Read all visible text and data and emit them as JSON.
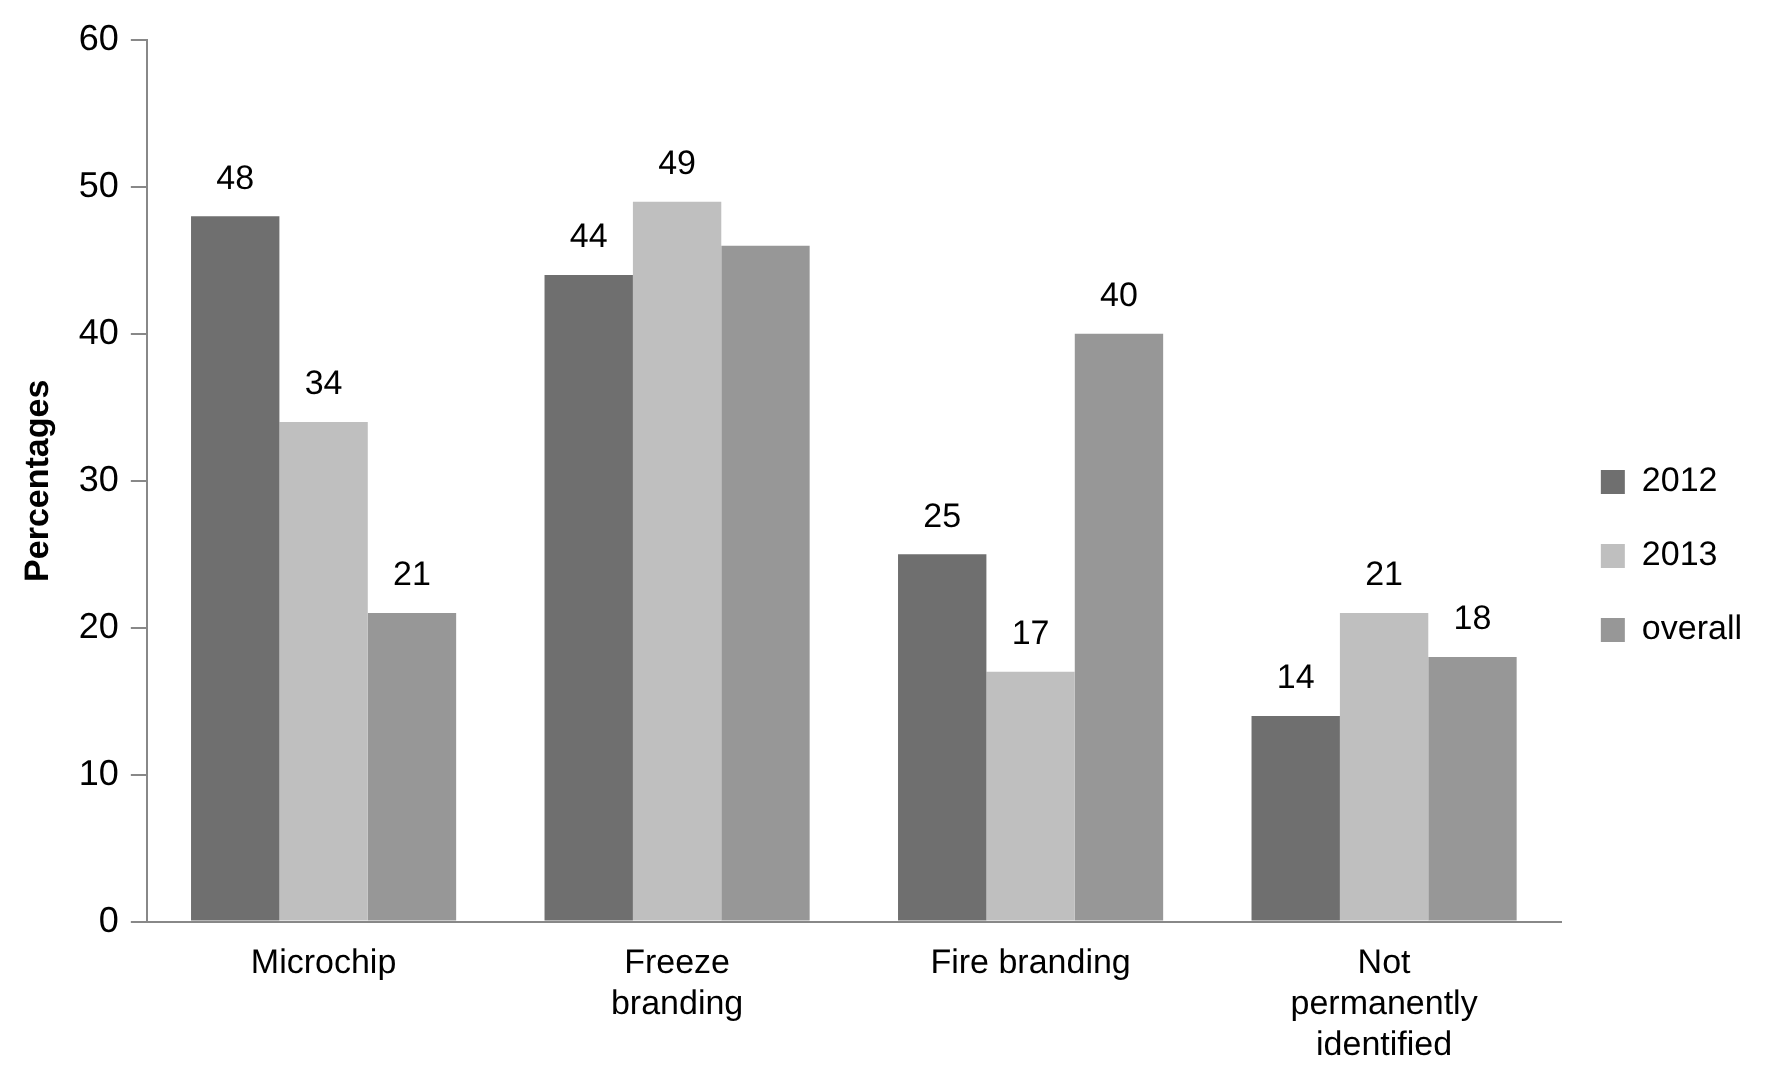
{
  "chart_data": {
    "type": "bar",
    "ylabel": "Percentages",
    "categories": [
      "Microchip",
      "Freeze branding",
      "Fire branding",
      "Not permanently identified"
    ],
    "series": [
      {
        "name": "2012",
        "color": "#6f6f6f",
        "values": [
          48,
          44,
          25,
          14
        ],
        "value_labels": [
          "48",
          "44",
          "25",
          "14"
        ]
      },
      {
        "name": "2013",
        "color": "#bfbfbf",
        "values": [
          34,
          49,
          17,
          21
        ],
        "value_labels": [
          "34",
          "49",
          "17",
          "21"
        ]
      },
      {
        "name": "overall",
        "color": "#979797",
        "values": [
          21,
          46,
          40,
          18
        ],
        "value_labels": [
          "21",
          null,
          "40",
          "18"
        ]
      }
    ],
    "ylim": [
      0,
      60
    ],
    "yticks": [
      0,
      10,
      20,
      30,
      40,
      50,
      60
    ],
    "grid": false,
    "legend": "right"
  }
}
